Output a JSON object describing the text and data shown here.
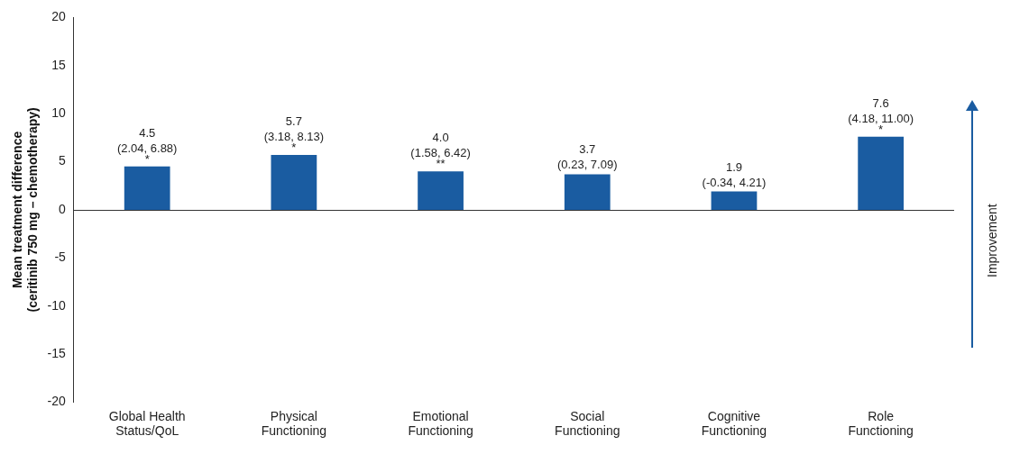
{
  "chart_data": {
    "type": "bar",
    "ylabel": "Mean treatment difference\n(ceritinib 750 mg – chemotherapy)",
    "categories": [
      "Global Health Status/QoL",
      "Physical Functioning",
      "Emotional Functioning",
      "Social Functioning",
      "Cognitive Functioning",
      "Role Functioning"
    ],
    "values": [
      4.5,
      5.7,
      4.0,
      3.7,
      1.9,
      7.6
    ],
    "color": "#1a5ca1",
    "value_labels": [
      "4.5\n(2.04, 6.88)",
      "5.7\n(3.18, 8.13)",
      "4.0\n(1.58, 6.42)",
      "3.7\n(0.23, 7.09)",
      "1.9\n(-0.34, 4.21)",
      "7.6\n(4.18, 11.00)"
    ],
    "annotations": [
      {
        "text": "*",
        "x": "Global Health Status/QoL",
        "y": 4.5
      },
      {
        "text": "*",
        "x": "Physical Functioning",
        "y": 5.7
      },
      {
        "text": "**",
        "x": "Emotional Functioning",
        "y": 4.0
      },
      {
        "text": "*",
        "x": "Role Functioning",
        "y": 7.6
      },
      "Improvement"
    ],
    "ref_lines": [
      {
        "axis": "y",
        "value": 0,
        "color": "#333333"
      }
    ],
    "ylim": [
      -20,
      20
    ],
    "yticks": [
      -20,
      -15,
      -10,
      -5,
      0,
      5,
      10,
      15,
      20
    ],
    "grid": false,
    "legend": false
  }
}
